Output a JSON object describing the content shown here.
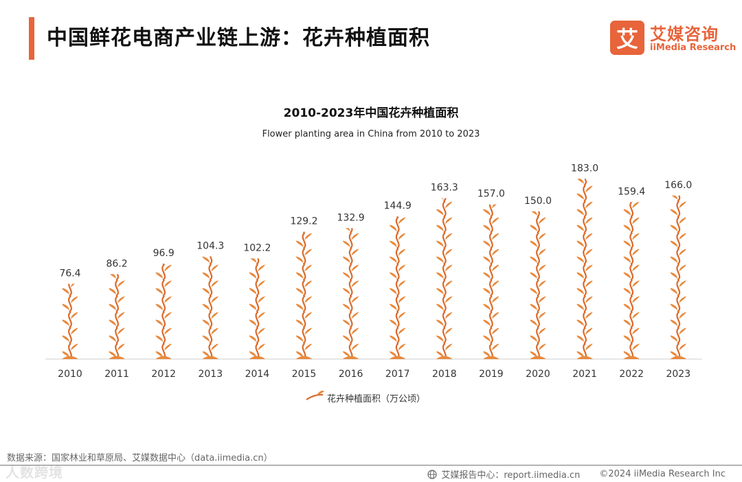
{
  "header": {
    "title": "中国鲜花电商产业链上游：花卉种植面积",
    "brand_cn": "艾媒咨询",
    "brand_en": "iiMedia Research",
    "brand_mark": "艾"
  },
  "chart_data": {
    "type": "bar",
    "title": "2010-2023年中国花卉种植面积",
    "subtitle": "Flower planting area in China from 2010 to 2023",
    "categories": [
      "2010",
      "2011",
      "2012",
      "2013",
      "2014",
      "2015",
      "2016",
      "2017",
      "2018",
      "2019",
      "2020",
      "2021",
      "2022",
      "2023"
    ],
    "series": [
      {
        "name": "花卉种植面积（万公顷）",
        "values": [
          76.4,
          86.2,
          96.9,
          104.3,
          102.2,
          129.2,
          132.9,
          144.9,
          163.3,
          157.0,
          150.0,
          183.0,
          159.4,
          166.0
        ],
        "labels": [
          "76.4",
          "86.2",
          "96.9",
          "104.3",
          "102.2",
          "129.2",
          "132.9",
          "144.9",
          "163.3",
          "157.0",
          "150.0",
          "183.0",
          "159.4",
          "166.0"
        ]
      }
    ],
    "ylim": [
      0,
      200
    ],
    "grid": false,
    "legend_position": "bottom",
    "colors": {
      "bar": "#e8893d",
      "bar_dark": "#d9692b"
    }
  },
  "footer": {
    "source": "数据来源：国家林业和草原局、艾媒数据中心（data.iimedia.cn）",
    "report_center": "艾媒报告中心：report.iimedia.cn",
    "copyright": "©2024  iiMedia Research Inc",
    "watermark": "人数跨境",
    "icon": "globe-icon"
  }
}
